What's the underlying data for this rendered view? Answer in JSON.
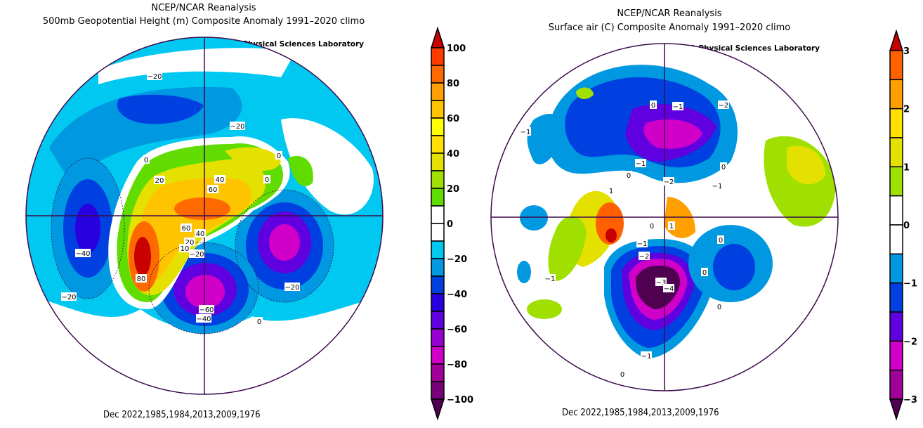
{
  "maps": [
    {
      "id": "hgt500",
      "title_line1": "NCEP/NCAR Reanalysis",
      "title_line2": "500mb Geopotential Height (m) Composite Anomaly 1991–2020 climo",
      "credit": "NOAA Physical Sciences Laboratory",
      "footer": "Dec 2022,1985,1984,2013,2009,1976",
      "projection": "north polar stereographic",
      "contour_labels": [
        "-20",
        "-20",
        "0",
        "20",
        "40",
        "60",
        "60",
        "40",
        "20",
        "10",
        "-20",
        "0",
        "0",
        "-40",
        "80",
        "-20",
        "-20",
        "-60",
        "-40",
        "0"
      ],
      "colorbar": {
        "ticks": [
          "100",
          "80",
          "60",
          "40",
          "20",
          "0",
          "-20",
          "-40",
          "-60",
          "-80",
          "-100"
        ],
        "min": -100,
        "max": 100,
        "interval": 10,
        "colors": [
          "#c80000",
          "#ff3c00",
          "#ff6a00",
          "#ffa000",
          "#ffc400",
          "#ffff00",
          "#ffe000",
          "#e4e000",
          "#a0e000",
          "#60dc00",
          "#ffffff",
          "#ffffff",
          "#00c8f0",
          "#0098e0",
          "#0040e0",
          "#2800e0",
          "#6000e0",
          "#9800d0",
          "#d000c8",
          "#a00098",
          "#780078",
          "#500050"
        ]
      }
    },
    {
      "id": "air_sfc",
      "title_line1": "NCEP/NCAR Reanalysis",
      "title_line2": "Surface air (C) Composite Anomaly 1991–2020 climo",
      "credit": "NOAA Physical Sciences Laboratory",
      "footer": "Dec 2022,1985,1984,2013,2009,1976",
      "projection": "north polar stereographic",
      "contour_labels": [
        "0",
        "-1",
        "-2",
        "-1",
        "-1",
        "0",
        "0",
        "-2",
        "-1",
        "1",
        "0",
        "1",
        "-1",
        "-2",
        "0",
        "-3",
        "-4",
        "-1",
        "0",
        "0",
        "-1",
        "0"
      ],
      "colorbar": {
        "ticks": [
          "3",
          "2",
          "1",
          "0",
          "-1",
          "-2",
          "-3"
        ],
        "min": -3,
        "max": 3,
        "interval": 0.5,
        "colors": [
          "#c80000",
          "#ff6000",
          "#ffa000",
          "#ffe000",
          "#e4e000",
          "#a0e000",
          "#ffffff",
          "#ffffff",
          "#0098e0",
          "#0040e0",
          "#6000e0",
          "#d000c8",
          "#a00098",
          "#500050"
        ]
      }
    }
  ]
}
